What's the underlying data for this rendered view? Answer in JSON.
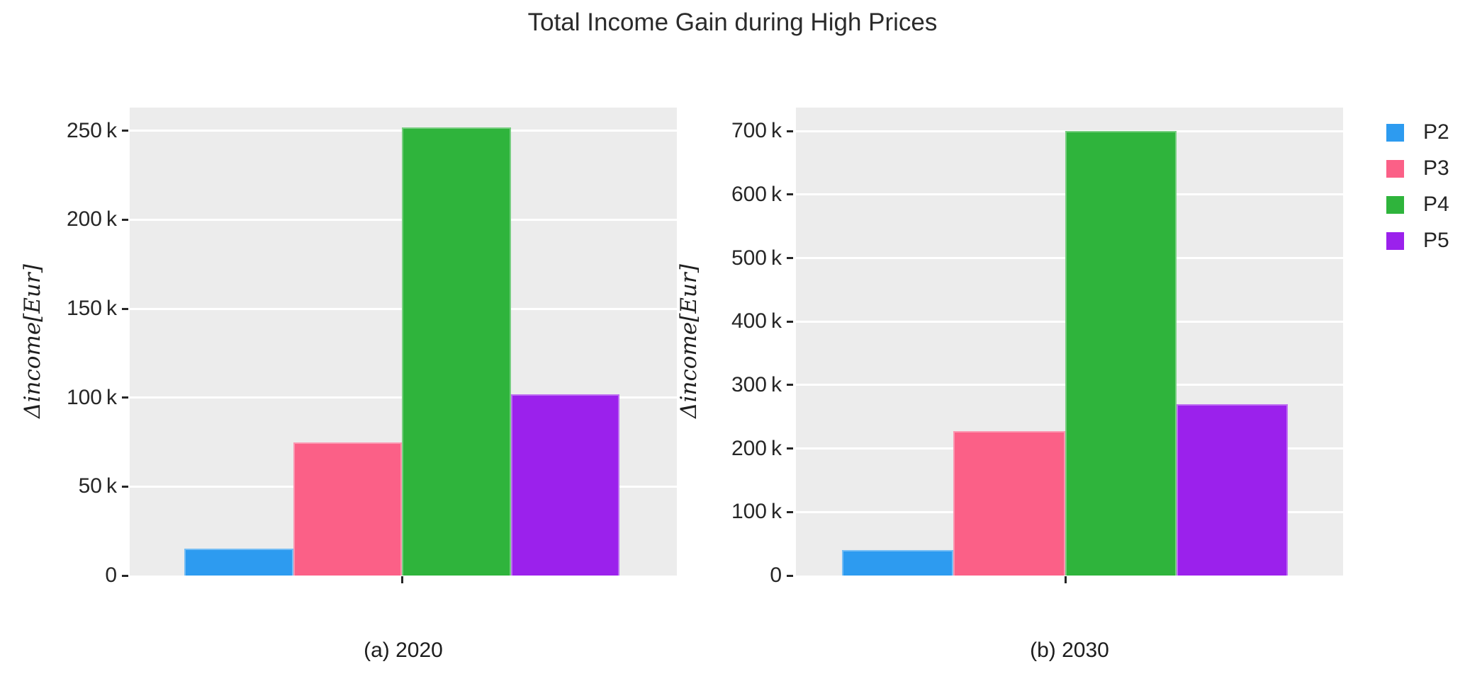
{
  "title": "Total Income Gain during High Prices",
  "ylabel": "Δincome[Eur]",
  "legend": {
    "position": "top-right",
    "items": [
      {
        "label": "P2",
        "color": "#2D9BF0"
      },
      {
        "label": "P3",
        "color": "#FB6087"
      },
      {
        "label": "P4",
        "color": "#2FB43C"
      },
      {
        "label": "P5",
        "color": "#9B21EC"
      }
    ]
  },
  "chart_data": [
    {
      "type": "bar",
      "caption": "(a) 2020",
      "xlabel": "",
      "ylabel": "Δincome[Eur]",
      "categories": [
        "P2",
        "P3",
        "P4",
        "P5"
      ],
      "values": [
        15000,
        75000,
        252000,
        102000
      ],
      "colors": [
        "#2D9BF0",
        "#FB6087",
        "#2FB43C",
        "#9B21EC"
      ],
      "ylim": [
        0,
        263000
      ],
      "yticks": [
        {
          "value": 0,
          "label": "0"
        },
        {
          "value": 50000,
          "label": "50 k"
        },
        {
          "value": 100000,
          "label": "100 k"
        },
        {
          "value": 150000,
          "label": "150 k"
        },
        {
          "value": 200000,
          "label": "200 k"
        },
        {
          "value": 250000,
          "label": "250 k"
        }
      ],
      "grid": true,
      "panel_bg": "#ECECEC",
      "gridline_color": "#FFFFFF"
    },
    {
      "type": "bar",
      "caption": "(b) 2030",
      "xlabel": "",
      "ylabel": "Δincome[Eur]",
      "categories": [
        "P2",
        "P3",
        "P4",
        "P5"
      ],
      "values": [
        40000,
        228000,
        700000,
        270000
      ],
      "colors": [
        "#2D9BF0",
        "#FB6087",
        "#2FB43C",
        "#9B21EC"
      ],
      "ylim": [
        0,
        737000
      ],
      "yticks": [
        {
          "value": 0,
          "label": "0"
        },
        {
          "value": 100000,
          "label": "100 k"
        },
        {
          "value": 200000,
          "label": "200 k"
        },
        {
          "value": 300000,
          "label": "300 k"
        },
        {
          "value": 400000,
          "label": "400 k"
        },
        {
          "value": 500000,
          "label": "500 k"
        },
        {
          "value": 600000,
          "label": "600 k"
        },
        {
          "value": 700000,
          "label": "700 k"
        }
      ],
      "grid": true,
      "panel_bg": "#ECECEC",
      "gridline_color": "#FFFFFF"
    }
  ]
}
